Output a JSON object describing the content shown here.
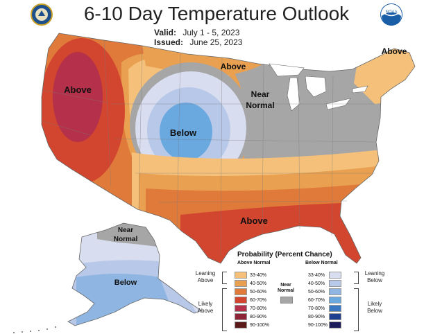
{
  "header": {
    "title": "6-10 Day Temperature Outlook",
    "valid_label": "Valid:",
    "valid_value": "July 1 - 5, 2023",
    "issued_label": "Issued:",
    "issued_value": "June 25, 2023"
  },
  "logos": {
    "left": "commerce-seal-icon",
    "right": "noaa-logo-icon",
    "right_text": "NOAA"
  },
  "map_labels": {
    "above_west": "Above",
    "above_north": "Above",
    "above_northeast": "Above",
    "near_normal_line1": "Near",
    "near_normal_line2": "Normal",
    "below": "Below",
    "above_south": "Above",
    "alaska_near_line1": "Near",
    "alaska_near_line2": "Normal",
    "alaska_below": "Below"
  },
  "colors": {
    "above_33_40": "#f5c07a",
    "above_40_50": "#e9a050",
    "above_50_60": "#e07a3a",
    "above_60_70": "#d2452e",
    "above_70_80": "#b5304a",
    "above_80_90": "#8e2438",
    "above_90_100": "#5a1a1a",
    "near_normal": "#a6a6a6",
    "below_33_40": "#d8def0",
    "below_40_50": "#b8c8e8",
    "below_50_60": "#8fb6e2",
    "below_60_70": "#6aa8e0",
    "below_70_80": "#3a78c4",
    "below_80_90": "#1f3f8f",
    "below_90_100": "#1c1c5a"
  },
  "legend": {
    "title": "Probability (Percent Chance)",
    "above_header": "Above Normal",
    "below_header": "Below Normal",
    "above_rows": [
      "33-40%",
      "40-50%",
      "50-60%",
      "60-70%",
      "70-80%",
      "80-90%",
      "90-100%"
    ],
    "below_rows": [
      "33-40%",
      "40-50%",
      "50-60%",
      "60-70%",
      "70-80%",
      "80-90%",
      "90-100%"
    ],
    "near_normal_line1": "Near",
    "near_normal_line2": "Normal",
    "leaning_above_line1": "Leaning",
    "leaning_above_line2": "Above",
    "likely_above_line1": "Likely",
    "likely_above_line2": "Above",
    "leaning_below_line1": "Leaning",
    "leaning_below_line2": "Below",
    "likely_below_line1": "Likely",
    "likely_below_line2": "Below"
  }
}
